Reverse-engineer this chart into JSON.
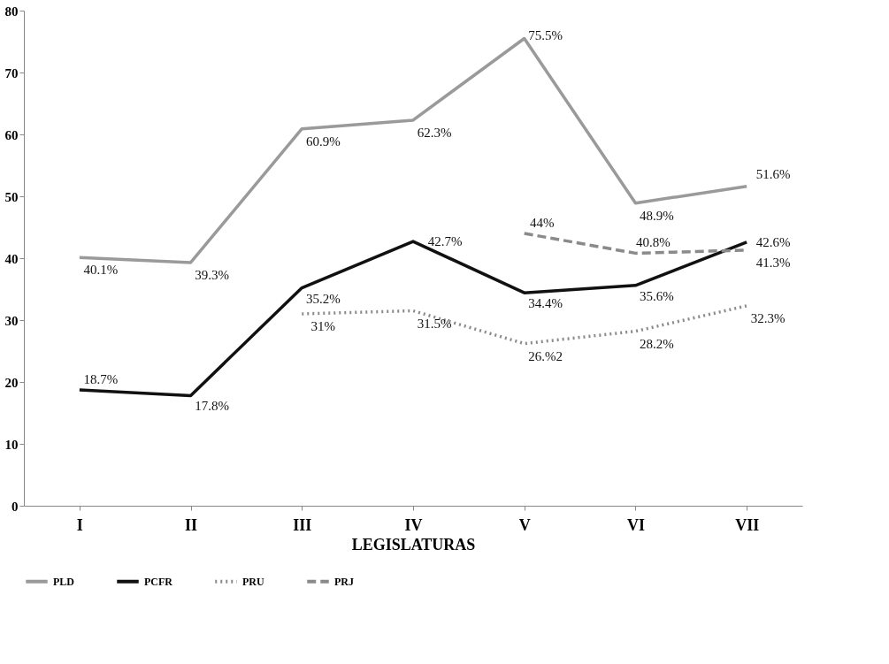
{
  "chart_data": {
    "type": "line",
    "xlabel": "LEGISLATURAS",
    "categories": [
      "I",
      "II",
      "III",
      "IV",
      "V",
      "VI",
      "VII"
    ],
    "ylim": [
      0,
      80
    ],
    "yticks": [
      0,
      10,
      20,
      30,
      40,
      50,
      60,
      70,
      80
    ],
    "grid": false,
    "legend": "bottom",
    "marker": "none",
    "series": [
      {
        "name": "PLD",
        "color": "#9a9a9a",
        "line_style": "solid",
        "values": [
          40.1,
          39.3,
          60.9,
          62.3,
          75.5,
          48.9,
          51.6
        ],
        "value_labels": [
          "40.1%",
          "39.3%",
          "60.9%",
          "62.3%",
          "75.5%",
          "48.9%",
          "51.6%"
        ]
      },
      {
        "name": "PCFR",
        "color": "#111111",
        "line_style": "solid",
        "values": [
          18.7,
          17.8,
          35.2,
          42.7,
          34.4,
          35.6,
          42.6
        ],
        "value_labels": [
          "18.7%",
          "17.8%",
          "35.2%",
          "42.7%",
          "34.4%",
          "35.6%",
          "42.6%"
        ]
      },
      {
        "name": "PRU",
        "color": "#8a8a8a",
        "line_style": "dotted",
        "values": [
          null,
          null,
          31,
          31.5,
          26.2,
          28.2,
          32.3
        ],
        "value_labels": [
          null,
          null,
          "31%",
          "31.5%",
          "26.%2",
          "28.2%",
          "32.3%"
        ]
      },
      {
        "name": "PRJ",
        "color": "#8a8a8a",
        "line_style": "dashed",
        "values": [
          null,
          null,
          null,
          null,
          44,
          40.8,
          41.3
        ],
        "value_labels": [
          null,
          null,
          null,
          null,
          "44%",
          "40.8%",
          "41.3%"
        ]
      }
    ]
  }
}
